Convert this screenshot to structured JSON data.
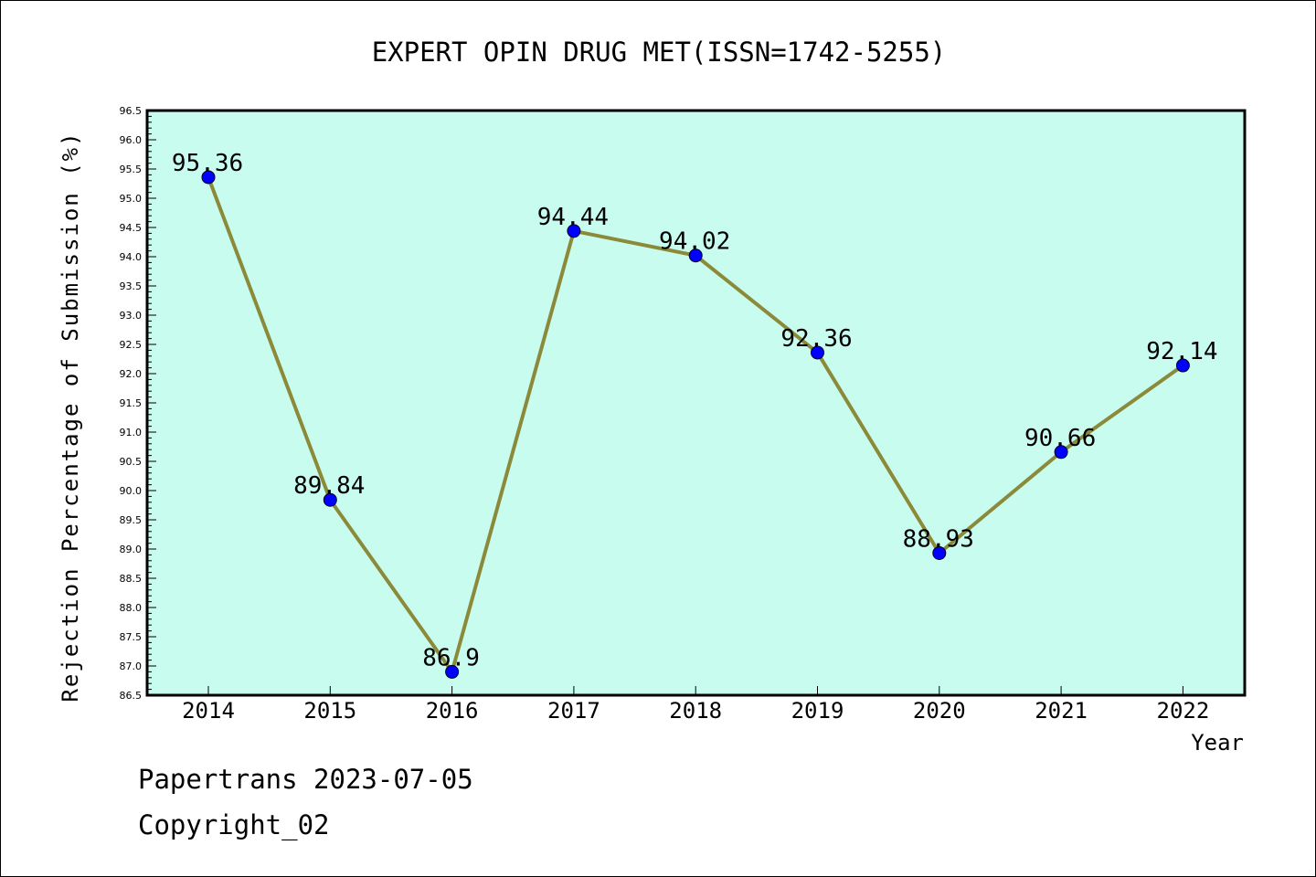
{
  "chart_data": {
    "type": "line",
    "title": "EXPERT OPIN DRUG MET(ISSN=1742-5255)",
    "xlabel": "Year",
    "ylabel": "Rejection Percentage of Submission (%)",
    "categories": [
      "2014",
      "2015",
      "2016",
      "2017",
      "2018",
      "2019",
      "2020",
      "2021",
      "2022"
    ],
    "series": [
      {
        "values": [
          95.36,
          89.84,
          86.9,
          94.44,
          94.02,
          92.36,
          88.93,
          90.66,
          92.14
        ],
        "data_labels": [
          "95.36",
          "89.84",
          "86.9",
          "94.44",
          "94.02",
          "92.36",
          "88.93",
          "90.66",
          "92.14"
        ]
      }
    ],
    "ylim": [
      86.5,
      96.5
    ],
    "yticks": [
      "86.5",
      "87.0",
      "87.5",
      "88.0",
      "88.5",
      "89.0",
      "89.5",
      "90.0",
      "90.5",
      "91.0",
      "91.5",
      "92.0",
      "92.5",
      "93.0",
      "93.5",
      "94.0",
      "94.5",
      "95.0",
      "95.5",
      "96.0",
      "96.5"
    ],
    "grid": false,
    "colors": {
      "plot_background": "#c8fcee",
      "line": "#8b8a3a",
      "marker": "#0000ff"
    }
  },
  "footer": {
    "line1": "Papertrans 2023-07-05",
    "line2": "Copyright_02"
  }
}
